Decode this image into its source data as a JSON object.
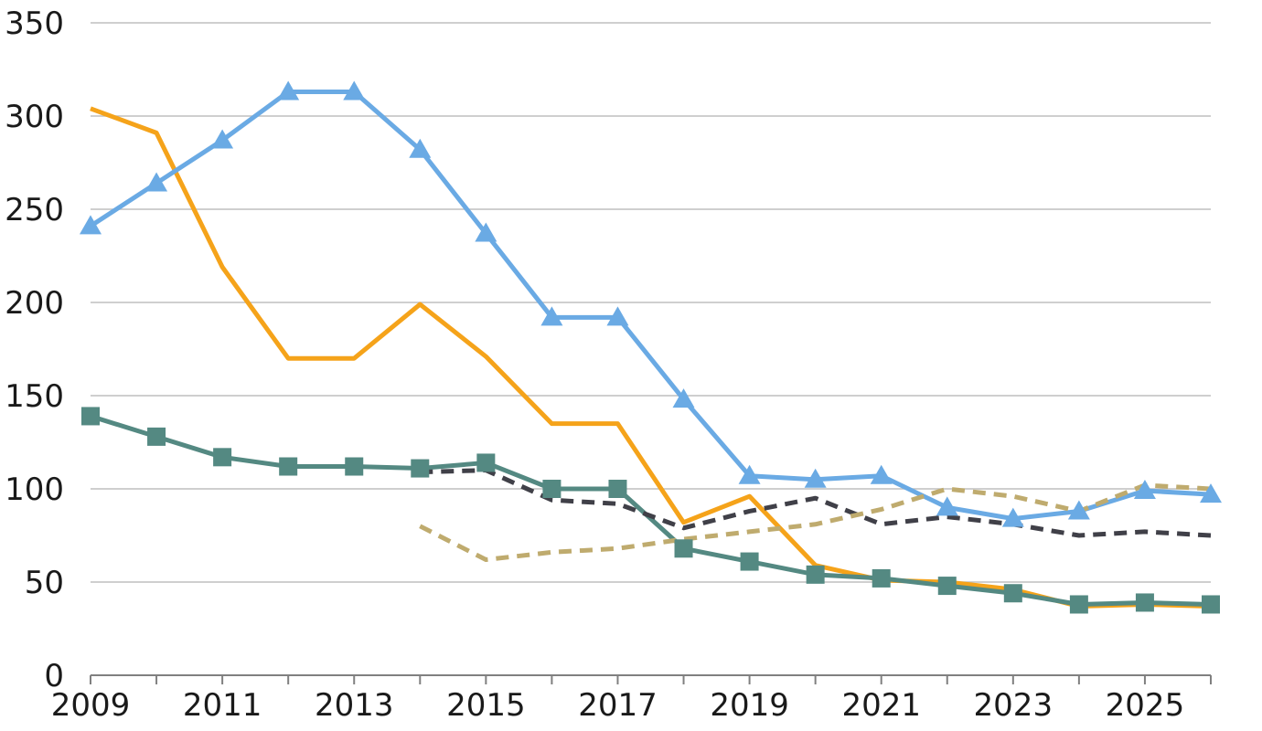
{
  "chart_data": {
    "type": "line",
    "title": "",
    "xlabel": "",
    "ylabel": "",
    "x": [
      2009,
      2010,
      2011,
      2012,
      2013,
      2014,
      2015,
      2016,
      2017,
      2018,
      2019,
      2020,
      2021,
      2022,
      2023,
      2024,
      2025,
      2026
    ],
    "x_tick_labels": [
      "2009",
      "2011",
      "2013",
      "2015",
      "2017",
      "2019",
      "2021",
      "2023",
      "2025"
    ],
    "y_tick_labels": [
      "0",
      "50",
      "100",
      "150",
      "200",
      "250",
      "300",
      "350"
    ],
    "xlim": [
      2009,
      2026
    ],
    "ylim": [
      0,
      350
    ],
    "grid": "horizontal",
    "legend": "none",
    "series": [
      {
        "color": "#f5a31a",
        "style": "solid",
        "marker": "none",
        "values": [
          304,
          291,
          219,
          170,
          170,
          199,
          171,
          135,
          135,
          82,
          96,
          59,
          51,
          50,
          46,
          37,
          38,
          37
        ]
      },
      {
        "color": "#6aaae4",
        "style": "solid",
        "marker": "triangle",
        "values": [
          241,
          264,
          287,
          313,
          313,
          282,
          237,
          192,
          192,
          148,
          107,
          105,
          107,
          90,
          84,
          88,
          99,
          97
        ]
      },
      {
        "color": "#548982",
        "style": "solid",
        "marker": "square",
        "values": [
          139,
          128,
          117,
          112,
          112,
          111,
          114,
          100,
          100,
          68,
          61,
          54,
          52,
          48,
          44,
          38,
          39,
          38
        ]
      },
      {
        "color": "#404048",
        "style": "dashed",
        "marker": "none",
        "values": [
          null,
          null,
          null,
          null,
          null,
          109,
          110,
          94,
          92,
          79,
          88,
          95,
          81,
          85,
          81,
          75,
          77,
          75
        ]
      },
      {
        "color": "#bfab6e",
        "style": "dashed",
        "marker": "none",
        "values": [
          null,
          null,
          null,
          null,
          null,
          80,
          62,
          66,
          68,
          73,
          77,
          81,
          89,
          100,
          96,
          88,
          102,
          100
        ]
      }
    ]
  }
}
